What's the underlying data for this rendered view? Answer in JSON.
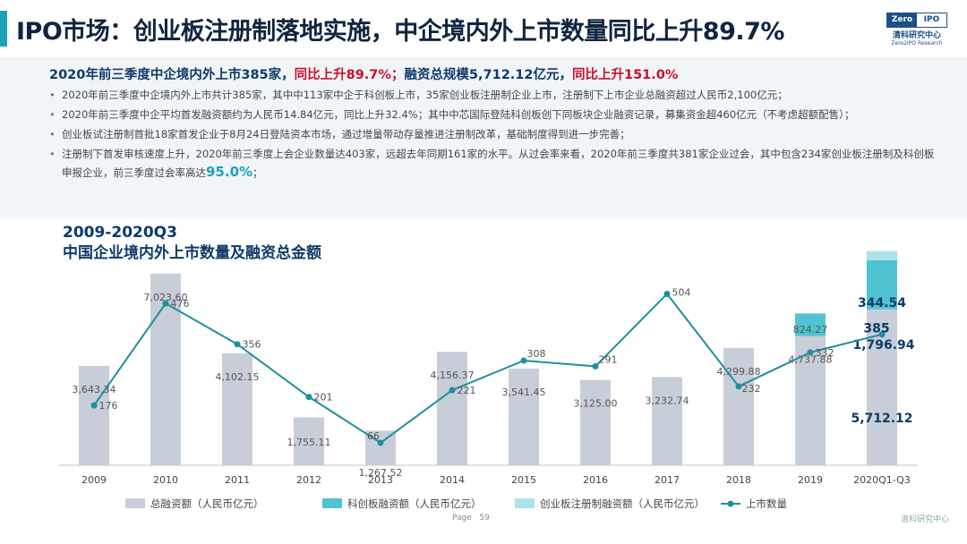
{
  "header": {
    "title": "IPO市场：创业板注册制落地实施，中企境内外上市数量同比上升89.7%",
    "logo": {
      "left": "Zero",
      "right": "IPO",
      "cn": "清科研究中心",
      "en": "Zero2IPO Research"
    }
  },
  "summary": {
    "p1": "2020年前三季度中企境内外上市385家，",
    "p2": "同比上升89.7%；",
    "p3": "融资总规模5,712.12亿元，",
    "p4": "同比上升151.0%"
  },
  "bullets": [
    "2020年前三季度中企境内外上市共计385家，其中中113家中企于科创板上市，35家创业板注册制企业上市，注册制下上市企业总融资超过人民币2,100亿元；",
    "2020年前三季度中企平均首发融资额约为人民币14.84亿元，同比上升32.4%；其中中芯国际登陆科创板创下同板块企业融资记录，募集资金超460亿元（不考虑超额配售）；",
    "创业板试注册制首批18家首发企业于8月24日登陆资本市场，通过增量带动存量推进注册制改革，基础制度得到进一步完善；",
    "注册制下首发审核速度上升，2020年前三季度上会企业数量达403家，远超去年同期161家的水平。从过会率来看，2020年前三季度共381家企业过会，其中包含234家创业板注册制及科创板申报企业，前三季度过会率高达"
  ],
  "bullet_emphasis": "95.0%",
  "bullet_end": "；",
  "chart_title_line1": "2009-2020Q3",
  "chart_title_line2": "中国企业境内外上市数量及融资总金额",
  "chart_data": {
    "type": "bar+line",
    "categories": [
      "2009",
      "2010",
      "2011",
      "2012",
      "2013",
      "2014",
      "2015",
      "2016",
      "2017",
      "2018",
      "2019",
      "2020Q1-Q3"
    ],
    "series": [
      {
        "name": "总融资额（人民币亿元）",
        "type": "bar",
        "color": "#c7ced8",
        "values": [
          3643.34,
          7023.6,
          4102.15,
          1755.11,
          1267.52,
          4156.37,
          3541.45,
          3125.0,
          3232.74,
          4299.88,
          4737.88,
          5712.12
        ],
        "labels": [
          "3,643.34",
          "7,023.60",
          "4,102.15",
          "1,755.11",
          "1,267.52",
          "4,156.37",
          "3,541.45",
          "3,125.00",
          "3,232.74",
          "4,299.88",
          "4,737.88",
          "5,712.12"
        ]
      },
      {
        "name": "科创板融资额（人民币亿元）",
        "type": "bar-stack",
        "color": "#4fc3d1",
        "values": [
          null,
          null,
          null,
          null,
          null,
          null,
          null,
          null,
          null,
          null,
          824.27,
          1796.94
        ],
        "labels": [
          "",
          "",
          "",
          "",
          "",
          "",
          "",
          "",
          "",
          "",
          "824.27",
          "1,796.94"
        ]
      },
      {
        "name": "创业板注册制融资额（人民币亿元）",
        "type": "bar-stack",
        "color": "#aee3ea",
        "values": [
          null,
          null,
          null,
          null,
          null,
          null,
          null,
          null,
          null,
          null,
          null,
          344.54
        ],
        "labels": [
          "",
          "",
          "",
          "",
          "",
          "",
          "",
          "",
          "",
          "",
          "",
          "344.54"
        ]
      },
      {
        "name": "上市数量",
        "type": "line",
        "color": "#1f8e9f",
        "values": [
          176,
          476,
          356,
          201,
          66,
          221,
          308,
          291,
          504,
          232,
          332,
          385
        ],
        "labels": [
          "176",
          "476",
          "356",
          "201",
          "66",
          "221",
          "308",
          "291",
          "504",
          "232",
          "332",
          "385"
        ]
      }
    ]
  },
  "footer": {
    "page_label": "Page",
    "page_number": "59",
    "brand": "清科研究中心"
  }
}
